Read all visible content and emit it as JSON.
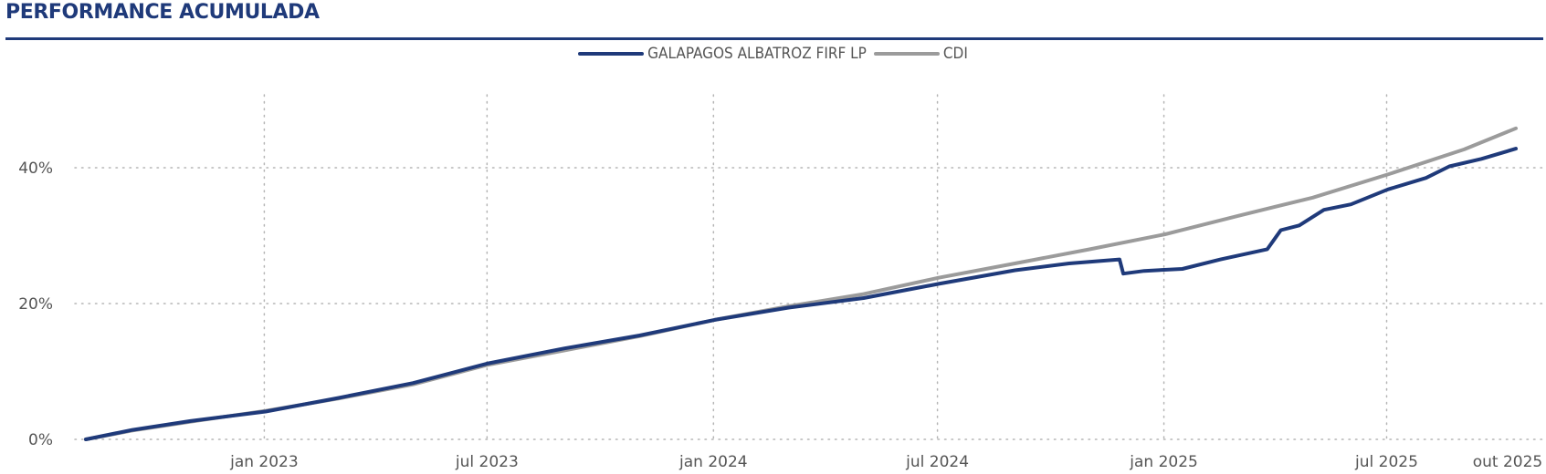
{
  "header": {
    "title": "PERFORMANCE ACUMULADA"
  },
  "chart_data": {
    "type": "line",
    "title": "PERFORMANCE ACUMULADA",
    "xlabel": "",
    "ylabel": "",
    "legend_position": "top-center",
    "grid": true,
    "x_range": [
      "2022-08-08",
      "2025-10-13"
    ],
    "ylim": [
      0,
      50
    ],
    "y_ticks": [
      {
        "value": 0,
        "label": "0%"
      },
      {
        "value": 20,
        "label": "20%"
      },
      {
        "value": 40,
        "label": "40%"
      }
    ],
    "x_ticks": [
      {
        "date": "2022-12-31",
        "label": "jan 2023"
      },
      {
        "date": "2023-06-30",
        "label": "jul 2023"
      },
      {
        "date": "2023-12-31",
        "label": "jan 2024"
      },
      {
        "date": "2024-06-30",
        "label": "jul 2024"
      },
      {
        "date": "2024-12-31",
        "label": "jan 2025"
      },
      {
        "date": "2025-06-30",
        "label": "jul 2025"
      },
      {
        "date": "2025-10-13",
        "label": "out 2025"
      }
    ],
    "series": [
      {
        "name": "GALAPAGOS ALBATROZ FIRF LP",
        "color": "#1f3a7a",
        "points": [
          [
            "2022-08-08",
            0.0
          ],
          [
            "2022-09-15",
            1.4
          ],
          [
            "2022-11-01",
            2.7
          ],
          [
            "2023-01-01",
            4.1
          ],
          [
            "2023-03-01",
            6.1
          ],
          [
            "2023-05-01",
            8.3
          ],
          [
            "2023-07-01",
            11.2
          ],
          [
            "2023-09-01",
            13.4
          ],
          [
            "2023-11-01",
            15.3
          ],
          [
            "2024-01-01",
            17.6
          ],
          [
            "2024-03-01",
            19.4
          ],
          [
            "2024-05-01",
            20.8
          ],
          [
            "2024-07-01",
            22.9
          ],
          [
            "2024-09-01",
            24.9
          ],
          [
            "2024-10-15",
            25.9
          ],
          [
            "2024-11-25",
            26.5
          ],
          [
            "2024-11-28",
            24.4
          ],
          [
            "2024-12-15",
            24.8
          ],
          [
            "2025-01-15",
            25.1
          ],
          [
            "2025-02-15",
            26.5
          ],
          [
            "2025-03-25",
            28.0
          ],
          [
            "2025-04-05",
            30.8
          ],
          [
            "2025-04-20",
            31.5
          ],
          [
            "2025-05-10",
            33.8
          ],
          [
            "2025-06-01",
            34.6
          ],
          [
            "2025-07-01",
            36.8
          ],
          [
            "2025-08-01",
            38.5
          ],
          [
            "2025-08-20",
            40.2
          ],
          [
            "2025-09-15",
            41.3
          ],
          [
            "2025-10-13",
            42.8
          ]
        ]
      },
      {
        "name": "CDI",
        "color": "#9b9b9b",
        "points": [
          [
            "2022-08-08",
            0.0
          ],
          [
            "2022-09-15",
            1.3
          ],
          [
            "2022-11-01",
            2.6
          ],
          [
            "2023-01-01",
            4.2
          ],
          [
            "2023-03-01",
            6.0
          ],
          [
            "2023-05-01",
            8.1
          ],
          [
            "2023-07-01",
            11.0
          ],
          [
            "2023-09-01",
            13.1
          ],
          [
            "2023-11-01",
            15.2
          ],
          [
            "2024-01-01",
            17.6
          ],
          [
            "2024-03-01",
            19.6
          ],
          [
            "2024-05-01",
            21.4
          ],
          [
            "2024-07-01",
            23.8
          ],
          [
            "2024-09-01",
            25.9
          ],
          [
            "2024-11-01",
            28.0
          ],
          [
            "2025-01-01",
            30.2
          ],
          [
            "2025-03-01",
            32.9
          ],
          [
            "2025-05-01",
            35.6
          ],
          [
            "2025-07-01",
            39.0
          ],
          [
            "2025-09-01",
            42.7
          ],
          [
            "2025-10-13",
            45.8
          ]
        ]
      }
    ]
  }
}
